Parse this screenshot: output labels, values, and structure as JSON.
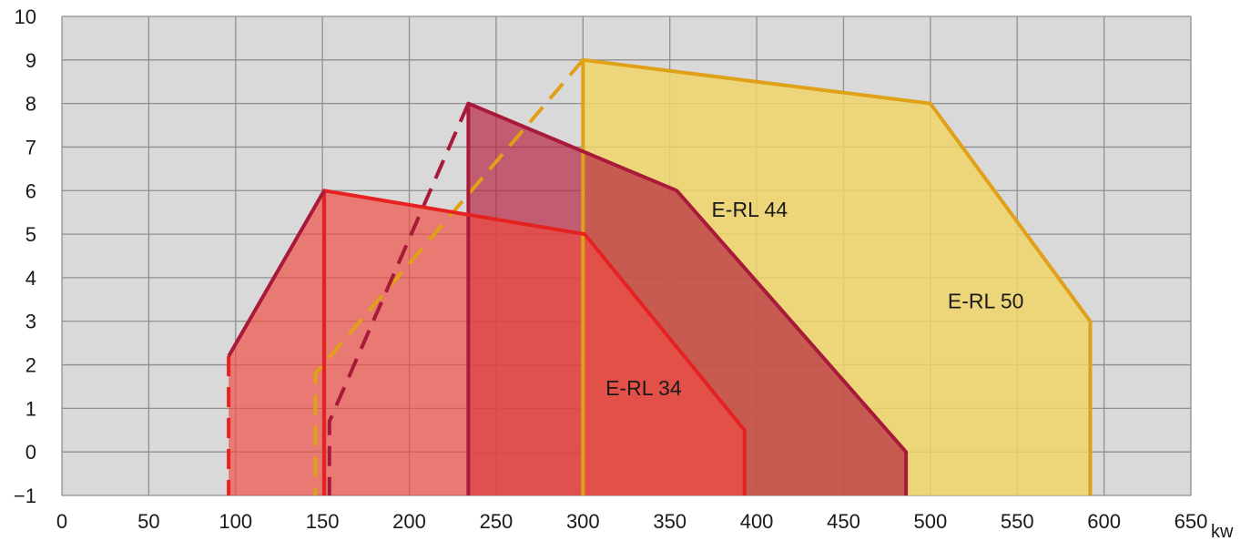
{
  "chart_data": {
    "type": "area",
    "x_unit": "kw",
    "xlim": [
      0,
      650
    ],
    "ylim": [
      -1,
      10
    ],
    "x_ticks": [
      0,
      50,
      100,
      150,
      200,
      250,
      300,
      350,
      400,
      450,
      500,
      550,
      600,
      650
    ],
    "y_ticks": [
      -1,
      0,
      1,
      2,
      3,
      4,
      5,
      6,
      7,
      8,
      9,
      10
    ],
    "grid": true,
    "background_color": "#d9d9d9",
    "series": [
      {
        "name": "E-RL 50",
        "fill_color": "#f2d565",
        "fill_opacity": 0.82,
        "line_color": "#e0a018",
        "outline": [
          [
            300,
            -1
          ],
          [
            300,
            9
          ],
          [
            500,
            8
          ],
          [
            592,
            3
          ],
          [
            592,
            -1
          ]
        ],
        "solid_edges": [
          [
            [
              300,
              -1
            ],
            [
              300,
              9
            ],
            [
              500,
              8
            ],
            [
              592,
              3
            ],
            [
              592,
              -1
            ]
          ]
        ],
        "dashed_edges": [
          [
            [
              300,
              9
            ],
            [
              146,
              1.8
            ],
            [
              146,
              -1
            ]
          ]
        ]
      },
      {
        "name": "E-RL 44",
        "fill_color": "#b52040",
        "fill_opacity": 0.68,
        "line_color": "#a8193a",
        "outline": [
          [
            234,
            -1
          ],
          [
            234,
            8
          ],
          [
            354,
            6
          ],
          [
            486,
            0
          ],
          [
            486,
            -1
          ]
        ],
        "solid_edges": [
          [
            [
              234,
              -1
            ],
            [
              234,
              8
            ],
            [
              354,
              6
            ],
            [
              486,
              0
            ],
            [
              486,
              -1
            ]
          ]
        ],
        "dashed_edges": [
          [
            [
              234,
              8
            ],
            [
              154,
              0.7
            ],
            [
              154,
              -1
            ]
          ]
        ]
      },
      {
        "name": "E-RL 34",
        "fill_color": "#ef4b43",
        "fill_opacity": 0.68,
        "line_color": "#e52222",
        "outline": [
          [
            96,
            -1
          ],
          [
            96,
            2.2
          ],
          [
            151,
            6
          ],
          [
            301,
            5
          ],
          [
            393,
            0.5
          ],
          [
            393,
            -1
          ]
        ],
        "solid_edges": [
          [
            [
              151,
              -1
            ],
            [
              151,
              6
            ],
            [
              301,
              5
            ],
            [
              393,
              0.5
            ],
            [
              393,
              -1
            ]
          ]
        ],
        "dashed_edges": [
          [
            [
              96,
              2.2
            ],
            [
              96,
              -1
            ]
          ]
        ],
        "extra_solid_edges": [
          {
            "from": [
              96,
              2.2
            ],
            "to": [
              151,
              6
            ],
            "color": "#a8193a"
          }
        ]
      }
    ],
    "annotations": [
      {
        "text": "E-RL 44",
        "x": 374,
        "y": 5.4
      },
      {
        "text": "E-RL 50",
        "x": 510,
        "y": 3.3
      },
      {
        "text": "E-RL 34",
        "x": 313,
        "y": 1.3
      }
    ]
  }
}
